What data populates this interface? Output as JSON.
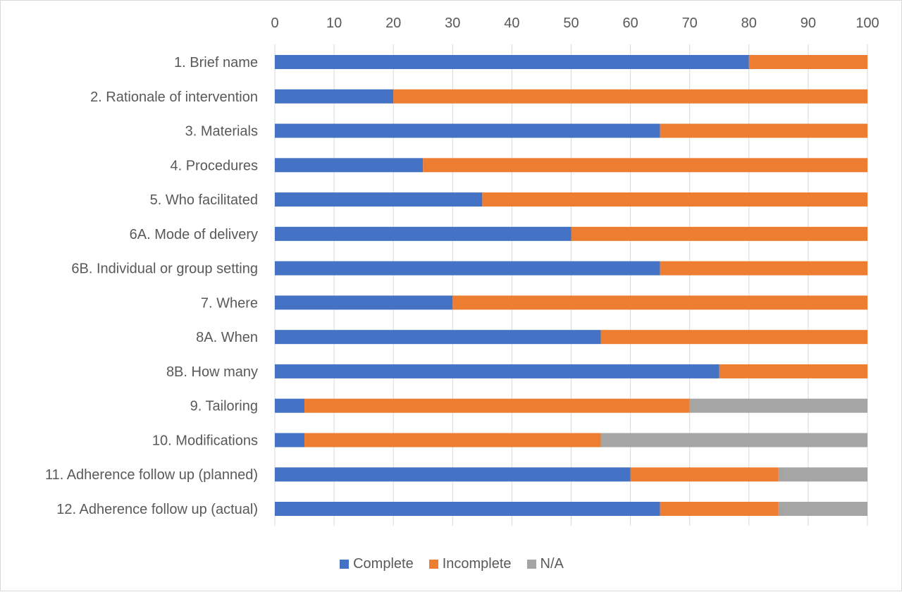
{
  "chart_data": {
    "type": "bar",
    "orientation": "horizontal",
    "stacked": true,
    "title": "",
    "xlabel": "",
    "ylabel": "",
    "xlim": [
      0,
      100
    ],
    "x_ticks": [
      0,
      10,
      20,
      30,
      40,
      50,
      60,
      70,
      80,
      90,
      100
    ],
    "x_axis_position": "top",
    "gridlines": "vertical",
    "legend_position": "bottom",
    "categories": [
      "1. Brief name",
      "2. Rationale of intervention",
      "3. Materials",
      "4. Procedures",
      "5. Who facilitated",
      "6A. Mode of delivery",
      "6B. Individual or group setting",
      "7. Where",
      "8A. When",
      "8B. How many",
      "9. Tailoring",
      "10. Modifications",
      "11. Adherence follow up (planned)",
      "12. Adherence follow up (actual)"
    ],
    "series": [
      {
        "name": "Complete",
        "color": "#4472c4",
        "values": [
          80,
          20,
          65,
          25,
          35,
          50,
          65,
          30,
          55,
          75,
          5,
          5,
          60,
          65
        ]
      },
      {
        "name": "Incomplete",
        "color": "#ed7d31",
        "values": [
          20,
          80,
          35,
          75,
          65,
          50,
          35,
          70,
          45,
          25,
          65,
          50,
          25,
          20
        ]
      },
      {
        "name": "N/A",
        "color": "#a5a5a5",
        "values": [
          0,
          0,
          0,
          0,
          0,
          0,
          0,
          0,
          0,
          0,
          30,
          45,
          15,
          15
        ]
      }
    ]
  }
}
